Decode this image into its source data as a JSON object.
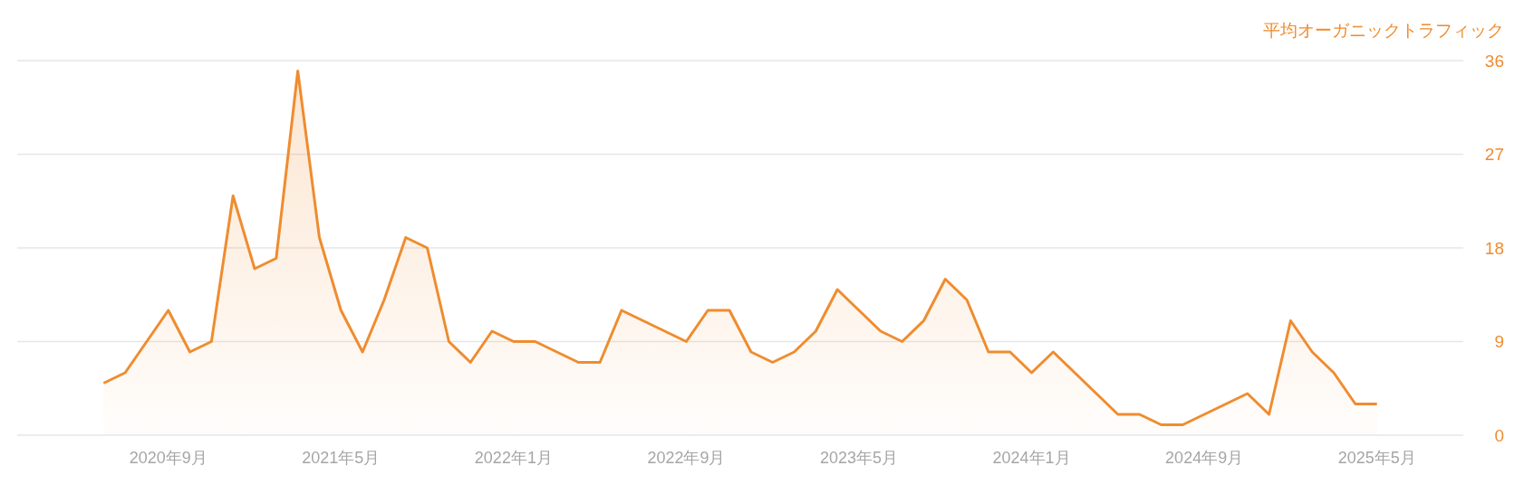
{
  "chart_data": {
    "type": "area",
    "ylabel": "平均オーガニックトラフィック",
    "color": "#ef8c2f",
    "x": [
      "2020-06",
      "2020-07",
      "2020-08",
      "2020-09",
      "2020-10",
      "2020-11",
      "2020-12",
      "2021-01",
      "2021-02",
      "2021-03",
      "2021-04",
      "2021-05",
      "2021-06",
      "2021-07",
      "2021-08",
      "2021-09",
      "2021-10",
      "2021-11",
      "2021-12",
      "2022-01",
      "2022-02",
      "2022-03",
      "2022-04",
      "2022-05",
      "2022-06",
      "2022-07",
      "2022-08",
      "2022-09",
      "2022-10",
      "2022-11",
      "2022-12",
      "2023-01",
      "2023-02",
      "2023-03",
      "2023-04",
      "2023-05",
      "2023-06",
      "2023-07",
      "2023-08",
      "2023-09",
      "2023-10",
      "2023-11",
      "2023-12",
      "2024-01",
      "2024-02",
      "2024-03",
      "2024-04",
      "2024-05",
      "2024-06",
      "2024-07",
      "2024-08",
      "2024-09",
      "2024-10",
      "2024-11",
      "2024-12",
      "2025-01",
      "2025-02",
      "2025-03",
      "2025-04",
      "2025-05"
    ],
    "values": [
      5,
      6,
      9,
      12,
      8,
      9,
      23,
      16,
      17,
      35,
      19,
      12,
      8,
      13,
      19,
      18,
      9,
      7,
      10,
      9,
      9,
      8,
      7,
      7,
      12,
      11,
      10,
      9,
      12,
      12,
      8,
      7,
      8,
      10,
      14,
      12,
      10,
      9,
      11,
      15,
      13,
      8,
      8,
      6,
      8,
      6,
      4,
      2,
      2,
      1,
      1,
      2,
      3,
      4,
      2,
      11,
      8,
      6,
      3,
      3
    ],
    "xlim": [
      "2020-02",
      "2025-09"
    ],
    "xticks": [
      {
        "value": "2020-09",
        "label": "2020年9月"
      },
      {
        "value": "2021-05",
        "label": "2021年5月"
      },
      {
        "value": "2022-01",
        "label": "2022年1月"
      },
      {
        "value": "2022-09",
        "label": "2022年9月"
      },
      {
        "value": "2023-05",
        "label": "2023年5月"
      },
      {
        "value": "2024-01",
        "label": "2024年1月"
      },
      {
        "value": "2024-09",
        "label": "2024年9月"
      },
      {
        "value": "2025-05",
        "label": "2025年5月"
      }
    ],
    "ylim": [
      0,
      36
    ],
    "yticks": [
      0,
      9,
      18,
      27,
      36
    ],
    "grid": "y"
  }
}
